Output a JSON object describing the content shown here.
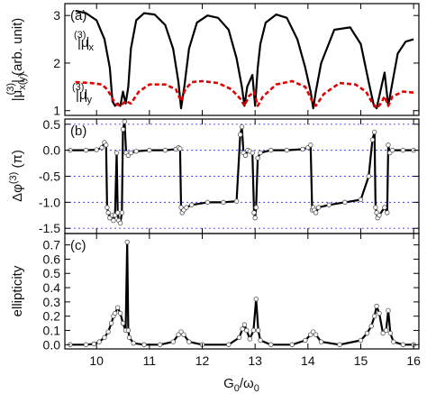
{
  "chart_data": [
    {
      "panel": "(a)",
      "type": "line",
      "ylabel": "|μ x(y) (3)| (arb. unit)",
      "ylabel_parts": {
        "pre": "|μ",
        "sub": "x(y)",
        "sup": "(3)",
        "post": "| (arb. unit)"
      },
      "xlim": [
        9.4,
        16.1
      ],
      "ylim": [
        0.9,
        3.25
      ],
      "yticks": [
        1,
        2,
        3
      ],
      "series": [
        {
          "name": "|μx(3)|",
          "label_parts": {
            "pre": "|μ",
            "sub": "x",
            "sup": "(3)",
            "post": "|"
          },
          "color": "#000000",
          "style": "solid",
          "x": [
            9.6,
            9.8,
            10.0,
            10.15,
            10.25,
            10.3,
            10.35,
            10.4,
            10.45,
            10.5,
            10.55,
            10.6,
            10.65,
            10.75,
            10.9,
            11.1,
            11.3,
            11.45,
            11.55,
            11.6,
            11.66,
            11.75,
            11.9,
            12.1,
            12.3,
            12.5,
            12.65,
            12.75,
            12.8,
            12.85,
            12.95,
            13.0,
            13.05,
            13.1,
            13.2,
            13.4,
            13.6,
            13.8,
            13.95,
            14.05,
            14.1,
            14.15,
            14.25,
            14.5,
            14.8,
            15.0,
            15.15,
            15.25,
            15.3,
            15.35,
            15.45,
            15.52,
            15.6,
            15.7,
            15.85,
            16.0
          ],
          "y": [
            3.1,
            3.05,
            2.9,
            2.5,
            1.9,
            1.2,
            1.1,
            1.15,
            1.1,
            1.4,
            1.15,
            1.5,
            2.3,
            2.9,
            3.05,
            3.02,
            2.8,
            2.3,
            1.6,
            1.05,
            1.5,
            2.3,
            2.85,
            3.0,
            2.95,
            2.7,
            2.1,
            1.5,
            1.1,
            1.5,
            1.75,
            1.1,
            1.9,
            2.4,
            2.85,
            3.02,
            2.95,
            2.5,
            1.9,
            1.4,
            1.05,
            1.4,
            2.0,
            2.7,
            2.75,
            2.4,
            1.6,
            1.1,
            1.05,
            1.3,
            1.8,
            1.1,
            1.6,
            2.2,
            2.45,
            2.5
          ]
        },
        {
          "name": "|μy(3)|",
          "label_parts": {
            "pre": "|μ",
            "sub": "y",
            "sup": "(3)",
            "post": "|"
          },
          "color": "#e00000",
          "style": "dashed",
          "x": [
            9.6,
            9.9,
            10.1,
            10.2,
            10.28,
            10.35,
            10.45,
            10.55,
            10.65,
            10.8,
            11.0,
            11.3,
            11.5,
            11.6,
            11.68,
            11.8,
            12.0,
            12.3,
            12.55,
            12.72,
            12.8,
            12.88,
            12.98,
            13.05,
            13.15,
            13.4,
            13.7,
            13.95,
            14.08,
            14.15,
            14.3,
            14.6,
            14.9,
            15.1,
            15.2,
            15.3,
            15.38,
            15.45,
            15.52,
            15.6,
            15.8,
            16.0
          ],
          "y": [
            1.6,
            1.58,
            1.55,
            1.45,
            1.3,
            1.15,
            1.1,
            1.2,
            1.15,
            1.4,
            1.55,
            1.55,
            1.45,
            1.2,
            1.45,
            1.6,
            1.62,
            1.58,
            1.45,
            1.25,
            1.1,
            1.3,
            1.4,
            1.1,
            1.3,
            1.55,
            1.62,
            1.5,
            1.2,
            1.1,
            1.35,
            1.58,
            1.55,
            1.4,
            1.2,
            1.05,
            1.15,
            1.3,
            1.1,
            1.3,
            1.4,
            1.38
          ]
        }
      ]
    },
    {
      "panel": "(b)",
      "type": "line",
      "ylabel": "Δφ(3) (π)",
      "ylabel_parts": {
        "pre": "Δφ",
        "sup": "(3)",
        "post": " (π)"
      },
      "xlim": [
        9.4,
        16.1
      ],
      "ylim": [
        -1.6,
        0.6
      ],
      "yticks": [
        0.5,
        0.0,
        -0.5,
        -1.0,
        -1.5
      ],
      "ytick_labels": [
        "0.5",
        "0.0",
        "-0.5",
        "-1.0",
        "-1.5"
      ],
      "grid_dotted_y": [
        0.5,
        0.0,
        -0.5,
        -1.0,
        -1.5
      ],
      "series": [
        {
          "name": "Δφ(3)",
          "color": "#000000",
          "markers": "open-circle",
          "x": [
            9.5,
            9.8,
            10.0,
            10.1,
            10.15,
            10.18,
            10.2,
            10.22,
            10.25,
            10.3,
            10.32,
            10.35,
            10.38,
            10.4,
            10.42,
            10.45,
            10.48,
            10.5,
            10.53,
            10.56,
            10.6,
            10.65,
            10.75,
            11.0,
            11.3,
            11.5,
            11.55,
            11.58,
            11.6,
            11.62,
            11.65,
            11.7,
            11.8,
            12.1,
            12.4,
            12.65,
            12.72,
            12.75,
            12.78,
            12.82,
            12.86,
            12.9,
            12.95,
            12.98,
            13.0,
            13.02,
            13.05,
            13.1,
            13.3,
            13.6,
            13.9,
            14.0,
            14.05,
            14.08,
            14.1,
            14.12,
            14.15,
            14.2,
            14.4,
            14.7,
            15.0,
            15.15,
            15.22,
            15.26,
            15.28,
            15.3,
            15.32,
            15.35,
            15.45,
            15.5,
            15.52,
            15.55,
            15.6,
            15.8,
            16.0
          ],
          "y": [
            0.0,
            0.0,
            0.01,
            0.05,
            0.15,
            0.1,
            -1.1,
            -1.2,
            -1.3,
            -1.25,
            -1.35,
            -1.25,
            -0.05,
            -1.2,
            -1.35,
            -1.4,
            -1.2,
            0.4,
            0.55,
            -0.05,
            -0.1,
            -0.05,
            -0.02,
            0.0,
            0.0,
            0.02,
            0.05,
            0.03,
            -1.1,
            -1.2,
            -1.15,
            -1.1,
            -1.05,
            -1.0,
            -1.0,
            -0.98,
            0.3,
            0.45,
            -0.05,
            -0.1,
            0.0,
            -0.02,
            -0.05,
            -1.2,
            -1.3,
            -1.1,
            -0.15,
            -0.05,
            0.0,
            0.0,
            0.02,
            0.05,
            0.1,
            -1.15,
            -1.1,
            -1.15,
            -1.2,
            -1.1,
            -1.05,
            -1.0,
            -0.95,
            -0.5,
            0.2,
            0.35,
            -1.1,
            -1.2,
            -1.3,
            -1.25,
            -1.1,
            -1.2,
            0.1,
            -0.05,
            0.0,
            0.0,
            0.0
          ]
        }
      ]
    },
    {
      "panel": "(c)",
      "type": "line",
      "xlabel": "G0/ω0",
      "xlabel_parts": {
        "a": "G",
        "a_sub": "0",
        "mid": "/ω",
        "b_sub": "0"
      },
      "ylabel": "ellipticity",
      "xlim": [
        9.4,
        16.1
      ],
      "ylim": [
        -0.03,
        0.78
      ],
      "yticks": [
        0.0,
        0.1,
        0.2,
        0.3,
        0.4,
        0.5,
        0.6,
        0.7
      ],
      "ytick_labels": [
        "0.0",
        "0.1",
        "0.2",
        "0.3",
        "0.4",
        "0.5",
        "0.6",
        "0.7"
      ],
      "xticks": [
        10,
        11,
        12,
        13,
        14,
        15,
        16
      ],
      "series": [
        {
          "name": "ellipticity",
          "color": "#000000",
          "markers": "open-circle",
          "x": [
            9.5,
            9.8,
            9.95,
            10.05,
            10.15,
            10.22,
            10.28,
            10.32,
            10.35,
            10.4,
            10.45,
            10.5,
            10.55,
            10.58,
            10.6,
            10.62,
            10.7,
            10.9,
            11.2,
            11.45,
            11.55,
            11.6,
            11.65,
            11.75,
            12.0,
            12.5,
            12.7,
            12.76,
            12.8,
            12.84,
            12.9,
            12.97,
            13.02,
            13.06,
            13.1,
            13.3,
            13.7,
            13.95,
            14.05,
            14.1,
            14.15,
            14.25,
            14.6,
            15.0,
            15.12,
            15.2,
            15.26,
            15.3,
            15.35,
            15.42,
            15.48,
            15.52,
            15.56,
            15.62,
            15.8,
            16.0
          ],
          "y": [
            0.0,
            0.0,
            0.005,
            0.02,
            0.05,
            0.09,
            0.15,
            0.2,
            0.22,
            0.26,
            0.22,
            0.15,
            0.1,
            0.72,
            0.1,
            0.05,
            0.01,
            0.0,
            0.0,
            0.02,
            0.07,
            0.09,
            0.07,
            0.02,
            0.0,
            0.0,
            0.05,
            0.11,
            0.14,
            0.1,
            0.04,
            0.1,
            0.32,
            0.1,
            0.03,
            0.0,
            0.0,
            0.03,
            0.07,
            0.09,
            0.07,
            0.02,
            0.0,
            0.03,
            0.08,
            0.13,
            0.2,
            0.27,
            0.22,
            0.08,
            0.1,
            0.24,
            0.08,
            0.02,
            0.0,
            0.0
          ]
        }
      ]
    }
  ]
}
